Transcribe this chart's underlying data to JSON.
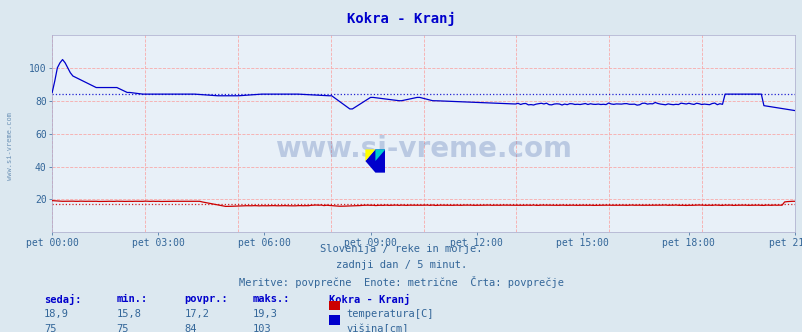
{
  "title": "Kokra - Kranj",
  "bg_color": "#dce8f0",
  "plot_bg_color": "#e8f0f8",
  "xlabel_ticks": [
    "pet 00:00",
    "pet 03:00",
    "pet 06:00",
    "pet 09:00",
    "pet 12:00",
    "pet 15:00",
    "pet 18:00",
    "pet 21:00"
  ],
  "ylabel_values": [
    20,
    40,
    60,
    80,
    100
  ],
  "ylim": [
    0,
    120
  ],
  "xlim": [
    0,
    287
  ],
  "subtitle_lines": [
    "Slovenija / reke in morje.",
    "zadnji dan / 5 minut.",
    "Meritve: povprečne  Enote: metrične  Črta: povprečje"
  ],
  "watermark": "www.si-vreme.com",
  "legend_title": "Kokra - Kranj",
  "legend_items": [
    {
      "label": "temperatura[C]",
      "color": "#cc0000"
    },
    {
      "label": "višina[cm]",
      "color": "#0000cc"
    }
  ],
  "stats_headers": [
    "sedaj:",
    "min.:",
    "povpr.:",
    "maks.:"
  ],
  "stats_rows": [
    [
      "18,9",
      "15,8",
      "17,2",
      "19,3"
    ],
    [
      "75",
      "75",
      "84",
      "103"
    ]
  ],
  "temp_avg": 17.2,
  "visina_avg": 84,
  "temp_color": "#cc0000",
  "visina_color": "#0000cc",
  "title_color": "#0000cc",
  "text_color": "#336699",
  "tick_color": "#336699",
  "font_size_title": 10,
  "font_size_tick": 7,
  "font_size_subtitle": 7.5,
  "font_size_watermark": 20,
  "font_size_stats": 7.5
}
